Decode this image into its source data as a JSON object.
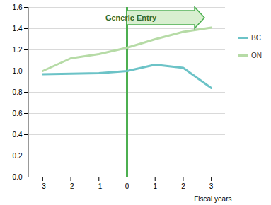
{
  "chart_data": {
    "type": "line",
    "x_label": "Fiscal years",
    "x": [
      -3,
      -2,
      -1,
      0,
      1,
      2,
      3
    ],
    "series": [
      {
        "name": "BC",
        "color": "#6cc3c7",
        "values": [
          0.97,
          0.975,
          0.98,
          1.0,
          1.06,
          1.03,
          0.84
        ]
      },
      {
        "name": "ON",
        "color": "#b6dba6",
        "values": [
          1.0,
          1.12,
          1.16,
          1.22,
          1.3,
          1.37,
          1.41
        ]
      }
    ],
    "xlim": [
      -3.5,
      3.5
    ],
    "xticks": [
      -3,
      -2,
      -1,
      0,
      1,
      2,
      3
    ],
    "ylim": [
      0,
      1.6
    ],
    "yticks": [
      {
        "value": 0,
        "label": "0.0"
      },
      {
        "value": 0.2,
        "label": "0.2"
      },
      {
        "value": 0.4,
        "label": "0.4"
      },
      {
        "value": 0.6,
        "label": "0.6"
      },
      {
        "value": 0.8,
        "label": "0.8"
      },
      {
        "value": 1.0,
        "label": "1.0"
      },
      {
        "value": 1.2,
        "label": "1.2"
      },
      {
        "value": 1.4,
        "label": "1.4"
      },
      {
        "value": 1.6,
        "label": "1.6"
      }
    ],
    "annotations": [
      {
        "text": "Generic Entry",
        "x": 0
      }
    ],
    "grid": true,
    "legend": "right"
  }
}
